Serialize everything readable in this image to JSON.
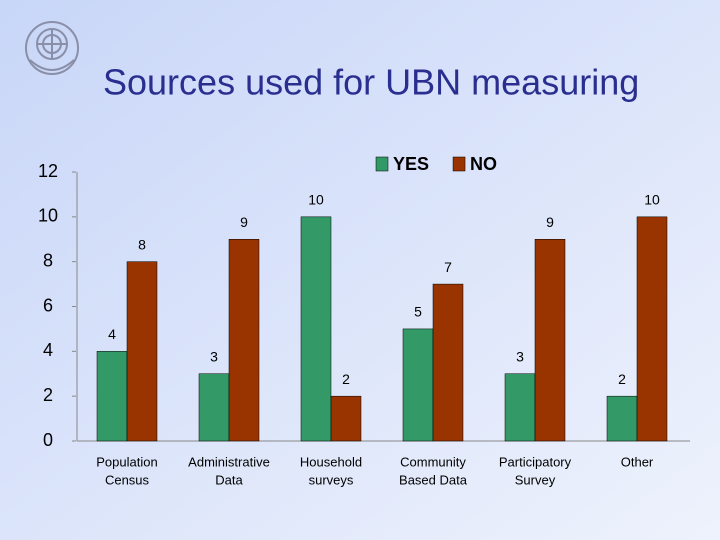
{
  "chart_data": {
    "type": "bar",
    "title": "Sources used for UBN measuring",
    "categories": [
      [
        "Population",
        "Census"
      ],
      [
        "Administrative",
        "Data"
      ],
      [
        "Household",
        "surveys"
      ],
      [
        "Community",
        "Based Data"
      ],
      [
        "Participatory",
        "Survey"
      ],
      [
        "Other"
      ]
    ],
    "series": [
      {
        "name": "YES",
        "color": "#339966",
        "values": [
          4,
          3,
          10,
          5,
          3,
          2
        ]
      },
      {
        "name": "NO",
        "color": "#993300",
        "values": [
          8,
          9,
          2,
          7,
          9,
          10
        ]
      }
    ],
    "ylim": [
      0,
      12
    ],
    "yticks": [
      0,
      2,
      4,
      6,
      8,
      10,
      12
    ],
    "grid": false,
    "legend": "top"
  }
}
